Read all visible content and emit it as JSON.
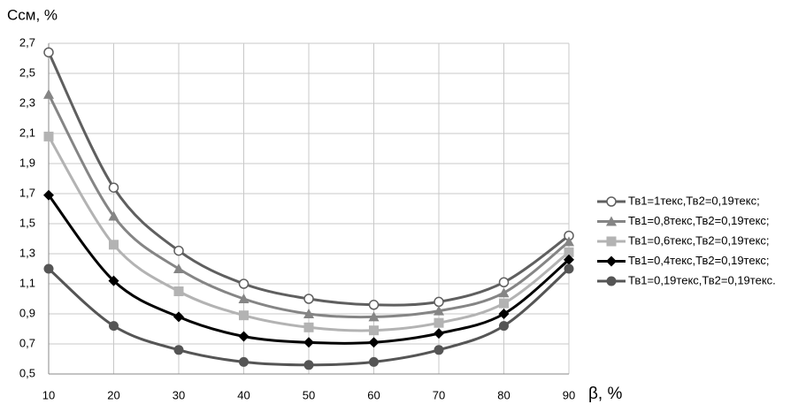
{
  "chart_data": {
    "type": "line",
    "y_label": "Ссм, %",
    "x_label": "β, %",
    "x": [
      10,
      20,
      30,
      40,
      50,
      60,
      70,
      80,
      90
    ],
    "xlim": [
      10,
      90
    ],
    "xticks": [
      10,
      20,
      30,
      40,
      50,
      60,
      70,
      80,
      90
    ],
    "ylim": [
      0.5,
      2.7
    ],
    "yticks": [
      {
        "value": 0.5,
        "label": "0,5"
      },
      {
        "value": 0.7,
        "label": "0,7"
      },
      {
        "value": 0.9,
        "label": "0,9"
      },
      {
        "value": 1.1,
        "label": "1,1"
      },
      {
        "value": 1.3,
        "label": "1,3"
      },
      {
        "value": 1.5,
        "label": "1,5"
      },
      {
        "value": 1.7,
        "label": "1,7"
      },
      {
        "value": 1.9,
        "label": "1,9"
      },
      {
        "value": 2.1,
        "label": "2,1"
      },
      {
        "value": 2.3,
        "label": "2,3"
      },
      {
        "value": 2.5,
        "label": "2,5"
      },
      {
        "value": 2.7,
        "label": "2,7"
      }
    ],
    "grid": true,
    "legend": "right",
    "series": [
      {
        "name": "Тв1=1текс,Тв2=0,19текс;",
        "color": "#5f5f5f",
        "marker": "open-circle",
        "values": [
          2.64,
          1.74,
          1.32,
          1.1,
          1.0,
          0.96,
          0.98,
          1.11,
          1.42
        ]
      },
      {
        "name": "Тв1=0,8текс,Тв2=0,19текс;",
        "color": "#858585",
        "marker": "triangle",
        "values": [
          2.36,
          1.55,
          1.2,
          1.0,
          0.9,
          0.88,
          0.92,
          1.04,
          1.38
        ]
      },
      {
        "name": "Тв1=0,6текс,Тв2=0,19текс;",
        "color": "#b3b3b3",
        "marker": "square",
        "values": [
          2.08,
          1.36,
          1.05,
          0.89,
          0.81,
          0.79,
          0.84,
          0.97,
          1.31
        ]
      },
      {
        "name": "Тв1=0,4текс,Тв2=0,19текс;",
        "color": "#000000",
        "marker": "diamond",
        "values": [
          1.69,
          1.12,
          0.88,
          0.75,
          0.71,
          0.71,
          0.77,
          0.9,
          1.26
        ]
      },
      {
        "name": "Тв1=0,19текс,Тв2=0,19текс.",
        "color": "#555555",
        "marker": "circle",
        "values": [
          1.2,
          0.82,
          0.66,
          0.58,
          0.56,
          0.58,
          0.66,
          0.82,
          1.2
        ]
      }
    ]
  }
}
